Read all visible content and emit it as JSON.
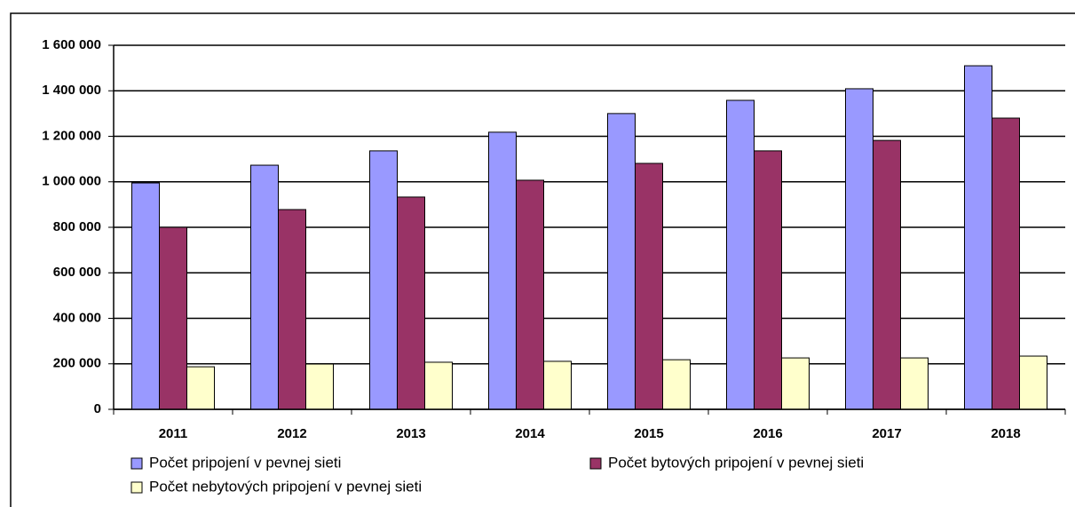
{
  "chart_data": {
    "type": "bar",
    "categories": [
      "2011",
      "2012",
      "2013",
      "2014",
      "2015",
      "2016",
      "2017",
      "2018"
    ],
    "series": [
      {
        "name": "Počet  pripojení v pevnej sieti",
        "color": "#9999ff",
        "values": [
          995000,
          1073000,
          1136000,
          1218000,
          1300000,
          1358000,
          1409000,
          1510000
        ]
      },
      {
        "name": "Počet bytových pripojení v pevnej sieti",
        "color": "#993366",
        "values": [
          800000,
          878000,
          933000,
          1007000,
          1081000,
          1136000,
          1182000,
          1280000
        ]
      },
      {
        "name": "Počet nebytových pripojení v pevnej sieti",
        "color": "#ffffcc",
        "values": [
          187000,
          199000,
          207000,
          211000,
          218000,
          226000,
          226000,
          234000
        ]
      }
    ],
    "ylim": [
      0,
      1600000
    ],
    "yticks": [
      0,
      {
        "value": 200000,
        "label": "200 000"
      },
      {
        "value": 400000,
        "label": "400 000"
      },
      {
        "value": 600000,
        "label": "600 000"
      },
      {
        "value": 800000,
        "label": "800 000"
      },
      {
        "value": 1000000,
        "label": "1 000 000"
      },
      {
        "value": 1200000,
        "label": "1 200 000"
      },
      {
        "value": 1400000,
        "label": "1 400 000"
      },
      {
        "value": 1600000,
        "label": "1 600 000"
      }
    ],
    "grid": true,
    "legend": "bottom"
  }
}
